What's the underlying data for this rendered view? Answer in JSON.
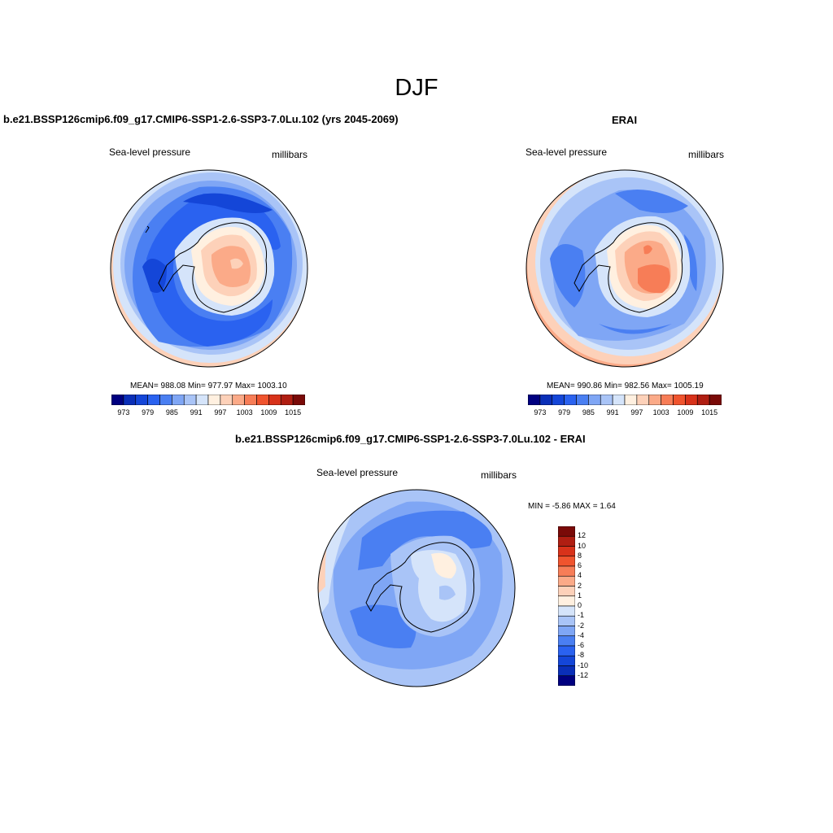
{
  "main_title": "DJF",
  "palette": [
    "#000080",
    "#0a2fb8",
    "#1446d8",
    "#2a62f0",
    "#4a7ff2",
    "#7fa6f5",
    "#a9c4f7",
    "#d5e4fa",
    "#fff0e0",
    "#fdd1b9",
    "#fbaa88",
    "#f77d57",
    "#f0542e",
    "#d8321a",
    "#b01e12",
    "#7a0a08"
  ],
  "panels": [
    {
      "title": "b.e21.BSSP126cmip6.f09_g17.CMIP6-SSP1-2.6-SSP3-7.0Lu.102 (yrs 2045-2069)",
      "left_label": "Sea-level pressure",
      "right_label": "millibars",
      "stats": "MEAN= 988.08  Min= 977.97  Max= 1003.10",
      "ticks": [
        "973",
        "979",
        "985",
        "991",
        "997",
        "1003",
        "1009",
        "1015"
      ]
    },
    {
      "title": "ERAI",
      "left_label": "Sea-level pressure",
      "right_label": "millibars",
      "stats": "MEAN= 990.86  Min= 982.56  Max= 1005.19",
      "ticks": [
        "973",
        "979",
        "985",
        "991",
        "997",
        "1003",
        "1009",
        "1015"
      ]
    }
  ],
  "diff": {
    "title": "b.e21.BSSP126cmip6.f09_g17.CMIP6-SSP1-2.6-SSP3-7.0Lu.102 - ERAI",
    "left_label": "Sea-level pressure",
    "right_label": "millibars",
    "minmax": "MIN =  -5.86 MAX =   1.64",
    "colorbar": {
      "colors": [
        "#7a0a08",
        "#b01e12",
        "#d8321a",
        "#f0542e",
        "#f77d57",
        "#fbaa88",
        "#fdd1b9",
        "#fff0e0",
        "#d5e4fa",
        "#a9c4f7",
        "#7fa6f5",
        "#4a7ff2",
        "#2a62f0",
        "#1446d8",
        "#0a2fb8",
        "#000080"
      ],
      "labels": [
        "12",
        "10",
        "8",
        "6",
        "4",
        "2",
        "1",
        "0",
        "-1",
        "-2",
        "-4",
        "-6",
        "-8",
        "-10",
        "-12"
      ]
    }
  }
}
